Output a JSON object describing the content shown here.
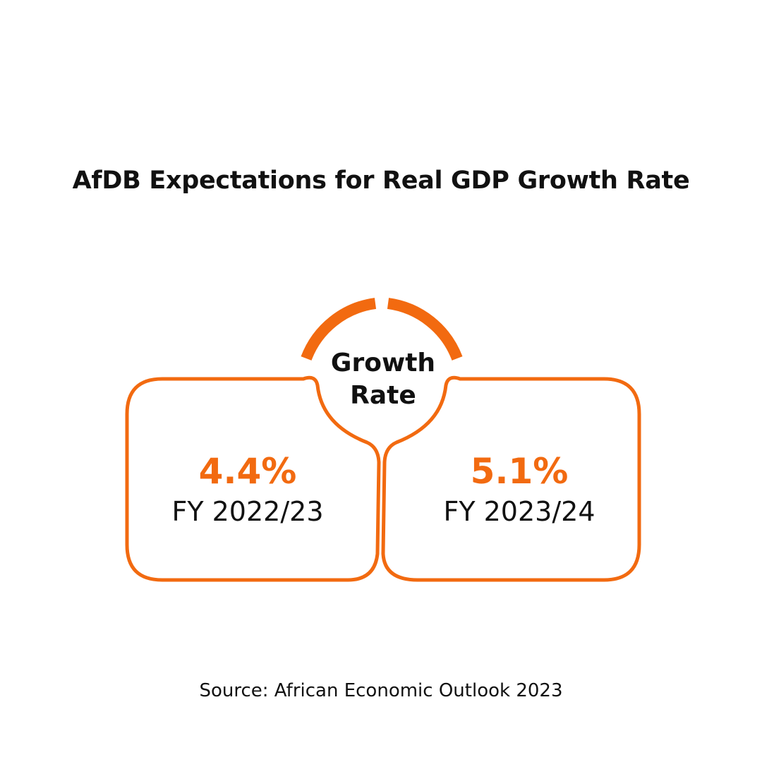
{
  "colors": {
    "accent": "#f26a10",
    "text": "#111111",
    "background": "#ffffff"
  },
  "chart_data": {
    "type": "table",
    "title": "AfDB Expectations for Real GDP Growth Rate",
    "center_label": [
      "Growth",
      "Rate"
    ],
    "categories": [
      "FY 2022/23",
      "FY 2023/24"
    ],
    "values": [
      "4.4%",
      "5.1%"
    ],
    "source": "Source: African Economic Outlook 2023"
  }
}
